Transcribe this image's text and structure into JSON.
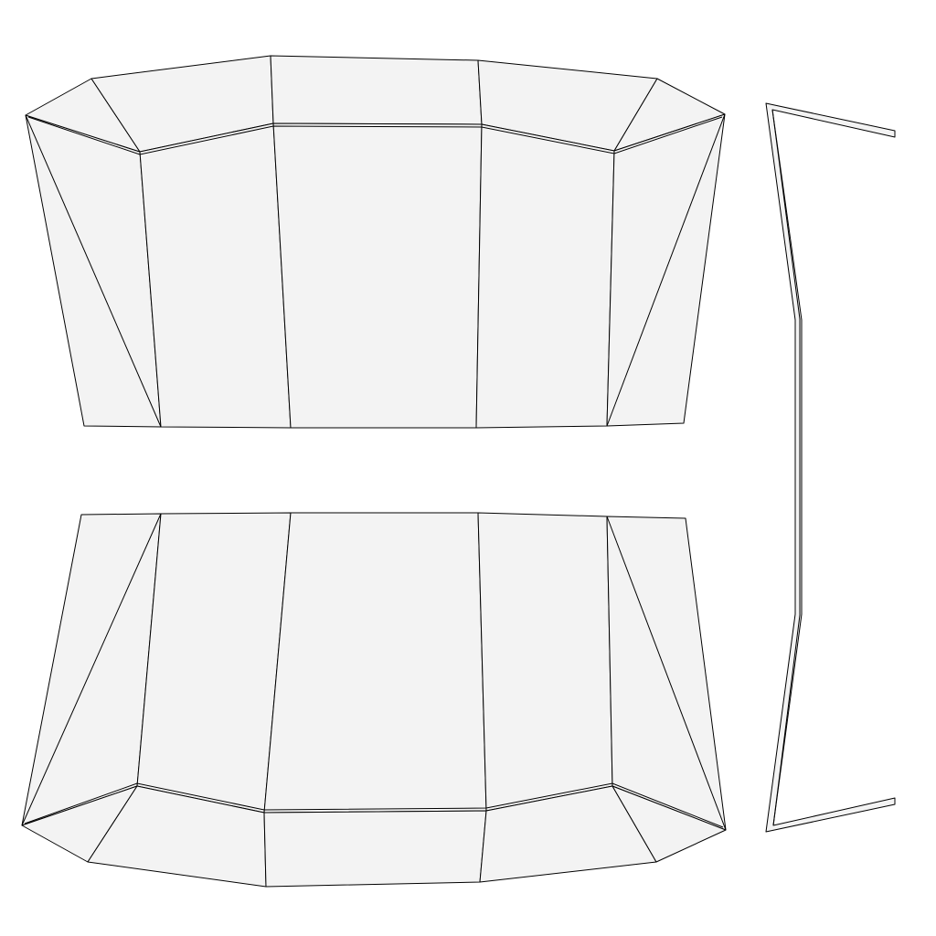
{
  "colors": {
    "background": "#ffffff",
    "face_fill": "#f3f3f3",
    "edge": "#000000"
  }
}
